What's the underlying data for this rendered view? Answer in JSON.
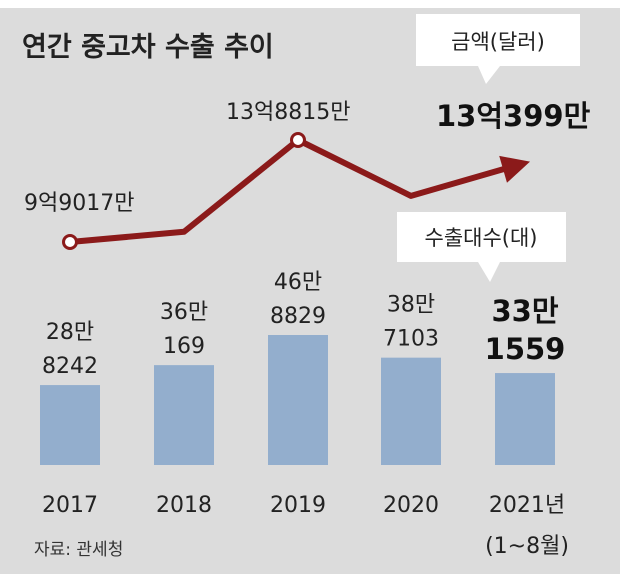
{
  "chart_data": {
    "type": "bar",
    "title": "연간 중고차 수출 추이",
    "source": "자료: 관세청",
    "categories": [
      "2017",
      "2018",
      "2019",
      "2020",
      "2021년"
    ],
    "category_note": "(1~8월)",
    "series": [
      {
        "name": "수출대수(대)",
        "type": "bar",
        "values": [
          288242,
          360169,
          468829,
          387103,
          331559
        ],
        "labels": [
          [
            "28만",
            "8242"
          ],
          [
            "36만",
            "169"
          ],
          [
            "46만",
            "8829"
          ],
          [
            "38만",
            "7103"
          ],
          [
            "33만",
            "1559"
          ]
        ]
      },
      {
        "name": "금액(달러)",
        "type": "line",
        "values": [
          990170000,
          1030000000,
          1388150000,
          1170000000,
          1303990000
        ],
        "labels": [
          "9억9017만",
          "",
          "13억8815만",
          "",
          "13억399만"
        ]
      }
    ],
    "colors": {
      "bar": "#93aecd",
      "line": "#8b1a1a",
      "background": "#dcdcdc"
    },
    "grid": false,
    "legend": "callouts"
  }
}
